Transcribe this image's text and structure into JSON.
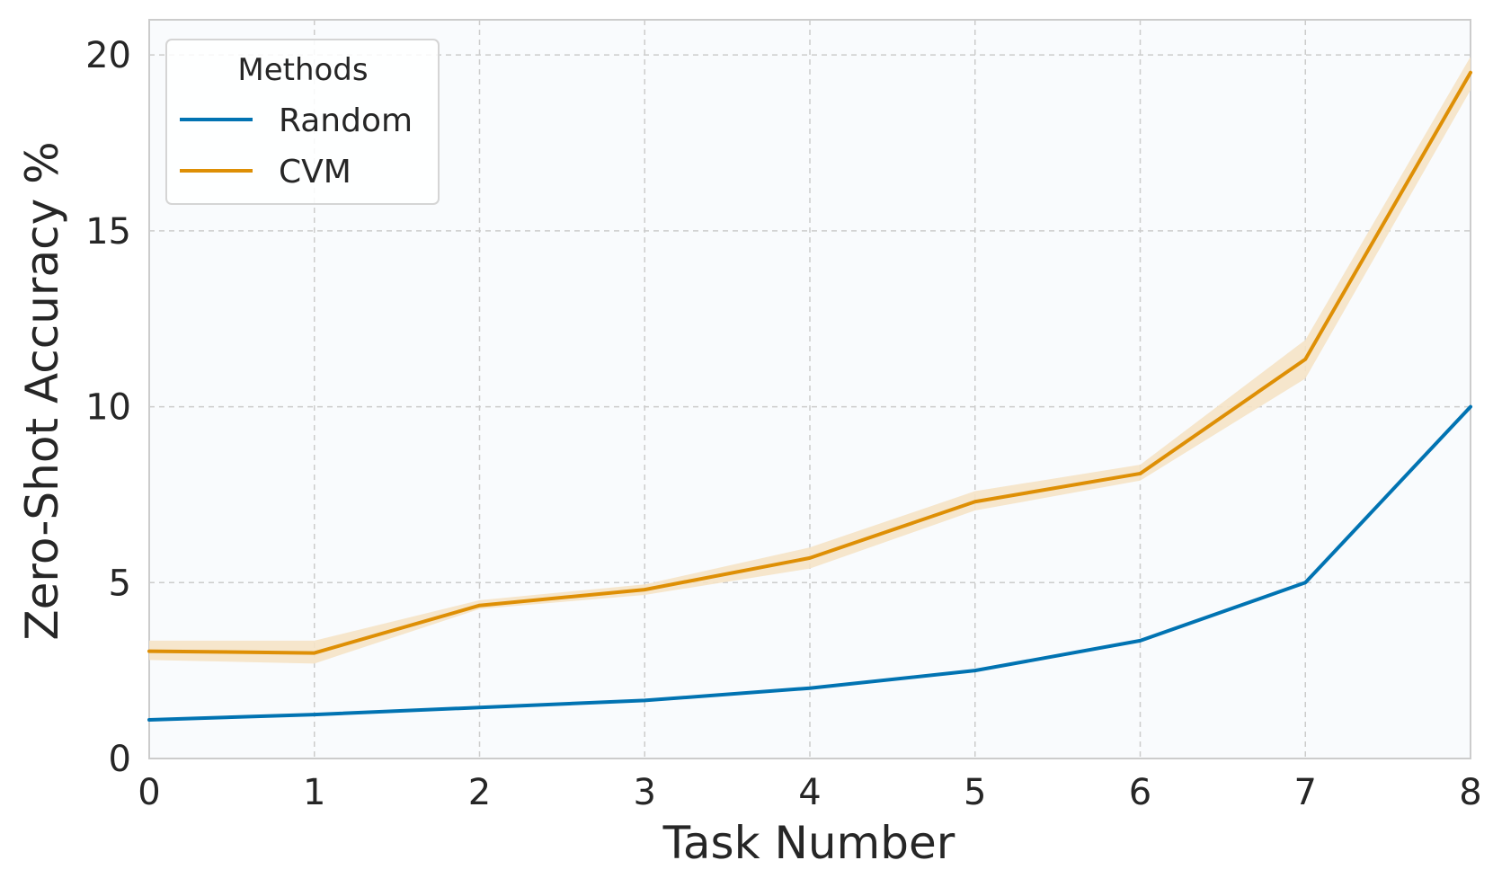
{
  "chart_data": {
    "type": "line",
    "title": "",
    "xlabel": "Task Number",
    "ylabel": "Zero-Shot Accuracy %",
    "x": [
      0,
      1,
      2,
      3,
      4,
      5,
      6,
      7,
      8
    ],
    "xlim": [
      0,
      8
    ],
    "ylim": [
      0,
      21
    ],
    "xticks": [
      "0",
      "1",
      "2",
      "3",
      "4",
      "5",
      "6",
      "7",
      "8"
    ],
    "yticks": [
      "0",
      "5",
      "10",
      "15",
      "20"
    ],
    "grid": true,
    "legend": {
      "title": "Methods",
      "placement": "top-left"
    },
    "series": [
      {
        "name": "Random",
        "color": "#0173b2",
        "values": [
          1.1,
          1.25,
          1.45,
          1.65,
          2.0,
          2.5,
          3.35,
          5.0,
          10.0
        ],
        "band_low": null,
        "band_high": null
      },
      {
        "name": "CVM",
        "color": "#de8f05",
        "band_color": "#f5e3c6",
        "values": [
          3.05,
          3.0,
          4.35,
          4.8,
          5.7,
          7.3,
          8.1,
          11.35,
          19.5
        ],
        "band_low": [
          2.8,
          2.7,
          4.25,
          4.65,
          5.4,
          7.05,
          7.9,
          10.8,
          19.0
        ],
        "band_high": [
          3.35,
          3.35,
          4.5,
          4.95,
          6.0,
          7.6,
          8.35,
          11.9,
          19.95
        ]
      }
    ]
  }
}
